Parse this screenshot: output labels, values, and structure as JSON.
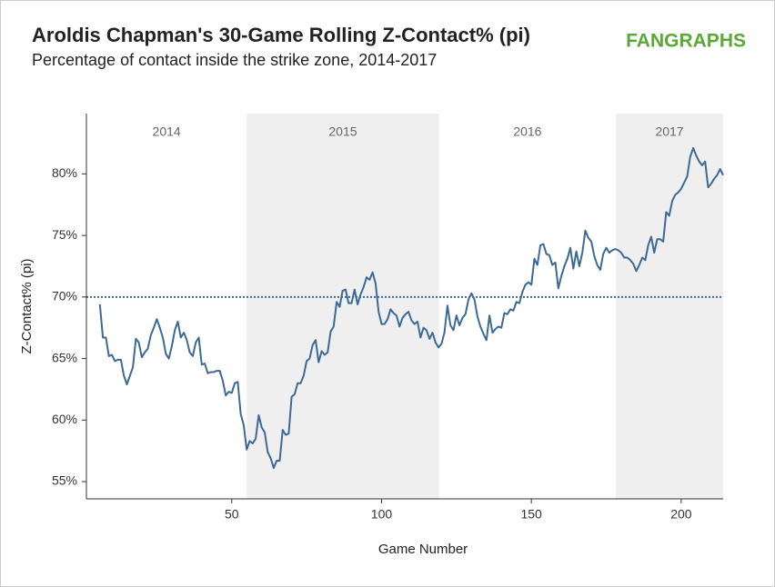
{
  "chart_data": {
    "type": "line",
    "title": "Aroldis Chapman's 30-Game Rolling Z-Contact% (pi)",
    "subtitle": "Percentage of contact inside the strike zone, 2014-2017",
    "source": "FANGRAPHS",
    "xlabel": "Game Number",
    "ylabel": "Z-Contact% (pi)",
    "color": "#3d6a94",
    "xlim": [
      1.5,
      214
    ],
    "ylim": [
      53.6,
      84.9
    ],
    "xticks": [
      50,
      100,
      150,
      200
    ],
    "yticks": [
      {
        "value": 55,
        "label": "55%"
      },
      {
        "value": 60,
        "label": "60%"
      },
      {
        "value": 65,
        "label": "65%"
      },
      {
        "value": 70,
        "label": "70%"
      },
      {
        "value": 75,
        "label": "75%"
      },
      {
        "value": 80,
        "label": "80%"
      }
    ],
    "reference_line": 70,
    "bands": [
      {
        "label": "2014",
        "range": [
          1.5,
          55
        ],
        "shaded": false
      },
      {
        "label": "2015",
        "range": [
          55,
          119.2
        ],
        "shaded": true
      },
      {
        "label": "2016",
        "range": [
          119.2,
          178.2
        ],
        "shaded": false
      },
      {
        "label": "2017",
        "range": [
          178.2,
          214
        ],
        "shaded": true
      }
    ],
    "x": [
      6,
      7,
      8,
      9,
      10,
      11,
      12,
      13,
      14,
      15,
      16,
      17,
      18,
      19,
      20,
      21,
      22,
      23,
      24,
      25,
      26,
      27,
      28,
      29,
      30,
      31,
      32,
      33,
      34,
      35,
      36,
      37,
      38,
      39,
      40,
      41,
      42,
      43,
      44,
      45,
      46,
      47,
      48,
      49,
      50,
      51,
      52,
      53,
      54,
      55,
      56,
      57,
      58,
      59,
      60,
      61,
      62,
      63,
      64,
      65,
      66,
      67,
      68,
      69,
      70,
      71,
      72,
      73,
      74,
      75,
      76,
      77,
      78,
      79,
      80,
      81,
      82,
      83,
      84,
      85,
      86,
      87,
      88,
      89,
      90,
      91,
      92,
      93,
      94,
      95,
      96,
      97,
      98,
      99,
      100,
      101,
      102,
      103,
      104,
      105,
      106,
      107,
      108,
      109,
      110,
      111,
      112,
      113,
      114,
      115,
      116,
      117,
      118,
      119,
      120,
      121,
      122,
      123,
      124,
      125,
      126,
      127,
      128,
      129,
      130,
      131,
      132,
      133,
      134,
      135,
      136,
      137,
      138,
      139,
      140,
      141,
      142,
      143,
      144,
      145,
      146,
      147,
      148,
      149,
      150,
      151,
      152,
      153,
      154,
      155,
      156,
      157,
      158,
      159,
      160,
      161,
      162,
      163,
      164,
      165,
      166,
      167,
      168,
      169,
      170,
      171,
      172,
      173,
      174,
      175,
      176,
      177,
      178,
      179,
      180,
      181,
      182,
      183,
      184,
      185,
      186,
      187,
      188,
      189,
      190,
      191,
      192,
      193,
      194,
      195,
      196,
      197,
      198,
      199,
      200,
      201,
      202,
      203,
      204,
      205,
      206,
      207,
      208,
      209,
      210,
      211,
      212,
      213,
      214
    ],
    "values": [
      69.4,
      66.7,
      66.7,
      65.2,
      65.3,
      64.8,
      64.9,
      64.9,
      63.6,
      62.9,
      63.6,
      64.3,
      66.6,
      66.3,
      65.1,
      65.5,
      65.8,
      66.9,
      67.5,
      68.2,
      67.5,
      66.7,
      65.4,
      65.0,
      66.0,
      67.3,
      68.0,
      66.7,
      67.1,
      66.5,
      65.5,
      65.2,
      66.3,
      66.7,
      64.5,
      64.6,
      63.8,
      63.9,
      63.9,
      64.0,
      64.0,
      63.2,
      62.0,
      62.3,
      62.2,
      63.0,
      63.1,
      60.5,
      59.6,
      57.6,
      58.3,
      58.1,
      58.5,
      60.4,
      59.4,
      59.0,
      57.4,
      56.9,
      56.1,
      56.7,
      56.7,
      59.2,
      58.8,
      58.9,
      61.9,
      62.1,
      63.0,
      63.0,
      63.6,
      64.8,
      65.0,
      66.1,
      66.5,
      64.7,
      65.6,
      65.3,
      65.5,
      67.2,
      67.6,
      69.6,
      69.2,
      70.5,
      70.6,
      69.5,
      69.5,
      70.6,
      69.4,
      70.2,
      70.8,
      71.6,
      71.4,
      72.0,
      71.1,
      68.8,
      67.8,
      67.8,
      68.2,
      69.0,
      68.7,
      68.5,
      67.6,
      68.3,
      68.6,
      68.8,
      68.1,
      67.8,
      68.0,
      66.7,
      67.5,
      67.3,
      66.6,
      67.1,
      66.3,
      65.9,
      66.2,
      67.1,
      69.3,
      67.7,
      67.3,
      68.5,
      67.7,
      68.3,
      68.6,
      69.8,
      70.3,
      69.8,
      68.4,
      67.6,
      67.0,
      66.5,
      68.5,
      67.1,
      67.4,
      67.6,
      67.5,
      68.7,
      68.6,
      69.0,
      68.9,
      69.6,
      69.5,
      70.4,
      71.0,
      71.2,
      71.0,
      73.1,
      72.6,
      74.2,
      74.3,
      73.5,
      73.4,
      72.6,
      72.8,
      70.7,
      71.7,
      72.5,
      73.1,
      74.0,
      72.3,
      73.7,
      72.5,
      73.6,
      75.4,
      74.8,
      74.5,
      73.3,
      72.6,
      72.2,
      73.5,
      74.0,
      73.6,
      73.8,
      73.9,
      73.8,
      73.6,
      73.2,
      73.2,
      73.0,
      72.7,
      72.1,
      72.6,
      73.2,
      73.0,
      74.2,
      74.9,
      73.6,
      74.7,
      74.7,
      74.5,
      76.9,
      76.6,
      77.8,
      78.3,
      78.5,
      78.8,
      79.3,
      79.8,
      81.4,
      82.1,
      81.5,
      81.0,
      80.7,
      81.0,
      78.9,
      79.2,
      79.6,
      79.9,
      80.4,
      79.9
    ]
  }
}
